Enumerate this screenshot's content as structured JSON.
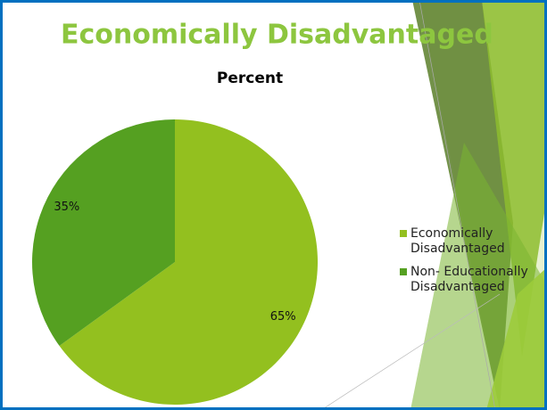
{
  "slide_title": "Economically Disadvantaged",
  "chart_data": {
    "type": "pie",
    "title": "Percent",
    "categories": [
      "Economically Disadvantaged",
      "Non- Educationally Disadvantaged"
    ],
    "values": [
      65,
      35
    ],
    "value_labels": [
      "65%",
      "35%"
    ],
    "colors": [
      "#93c01f",
      "#55a021"
    ],
    "legend": "right"
  }
}
